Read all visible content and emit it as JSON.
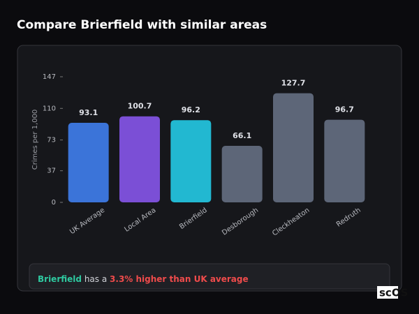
{
  "chart_data": {
    "type": "bar",
    "title": "Compare Brierfield with similar areas",
    "y_label": "Crimes per 1,000",
    "categories": [
      "UK Average",
      "Local Area",
      "Brierfield",
      "Desborough",
      "Cleckheaton",
      "Redruth"
    ],
    "values": [
      93.1,
      100.7,
      96.2,
      66.1,
      127.7,
      96.7
    ],
    "colors": [
      "#3b74d9",
      "#7b4fd6",
      "#22b8d1",
      "#5d6678",
      "#5d6678",
      "#5d6678"
    ],
    "ylim": [
      0,
      147
    ],
    "yticks": [
      0,
      37,
      73,
      110,
      147
    ],
    "grid": false
  },
  "summary": {
    "area": "Brierfield",
    "text": "has a",
    "highlight": "3.3% higher than UK average"
  },
  "brand": "scOS"
}
